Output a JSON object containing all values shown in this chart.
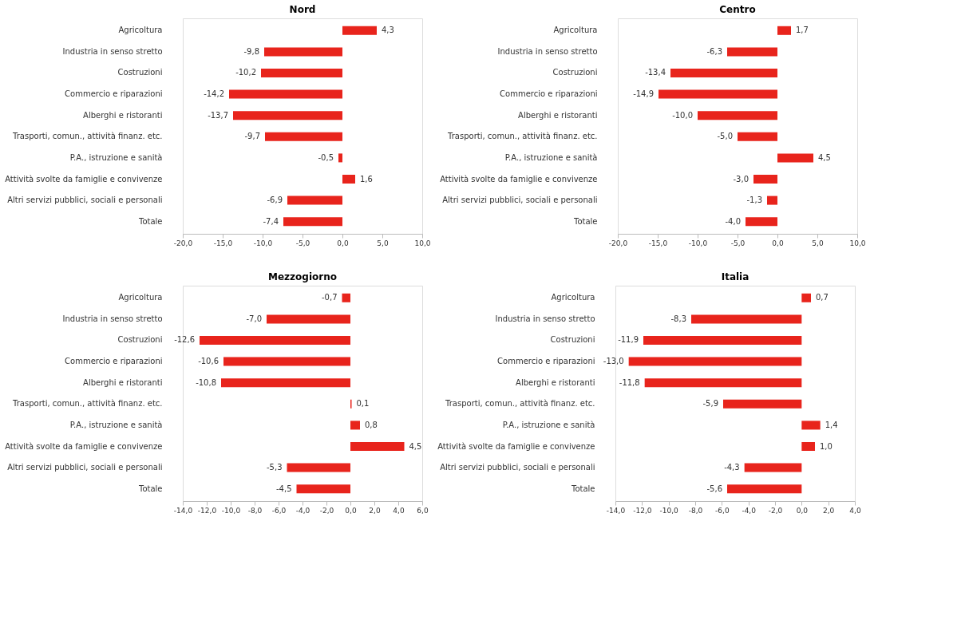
{
  "chart_data": [
    {
      "type": "bar",
      "orientation": "horizontal",
      "title": "Nord",
      "categories": [
        "Agricoltura",
        "Industria in senso stretto",
        "Costruzioni",
        "Commercio e riparazioni",
        "Alberghi e ristoranti",
        "Trasporti, comun., attività finanz. etc.",
        "P.A., istruzione e sanità",
        "Attività svolte da famiglie e convivenze",
        "Altri servizi pubblici, sociali e personali",
        "Totale"
      ],
      "values": [
        4.3,
        -9.8,
        -10.2,
        -14.2,
        -13.7,
        -9.7,
        -0.5,
        1.6,
        -6.9,
        -7.4
      ],
      "value_labels": [
        "4,3",
        "-9,8",
        "-10,2",
        "-14,2",
        "-13,7",
        "-9,7",
        "-0,5",
        "1,6",
        "-6,9",
        "-7,4"
      ],
      "color": "#e8241c",
      "xlim": [
        -20,
        10
      ],
      "xticks": [
        {
          "value": -20,
          "label": "-20,0"
        },
        {
          "value": -15,
          "label": "-15,0"
        },
        {
          "value": -10,
          "label": "-10,0"
        },
        {
          "value": -5,
          "label": "-5,0"
        },
        {
          "value": 0,
          "label": "0,0"
        },
        {
          "value": 5,
          "label": "5,0"
        },
        {
          "value": 10,
          "label": "10,0"
        }
      ]
    },
    {
      "type": "bar",
      "orientation": "horizontal",
      "title": "Centro",
      "categories": [
        "Agricoltura",
        "Industria in senso stretto",
        "Costruzioni",
        "Commercio e riparazioni",
        "Alberghi e ristoranti",
        "Trasporti, comun., attività finanz. etc.",
        "P.A., istruzione e sanità",
        "Attività svolte da famiglie e convivenze",
        "Altri servizi pubblici, sociali e personali",
        "Totale"
      ],
      "values": [
        1.7,
        -6.3,
        -13.4,
        -14.9,
        -10.0,
        -5.0,
        4.5,
        -3.0,
        -1.3,
        -4.0
      ],
      "value_labels": [
        "1,7",
        "-6,3",
        "-13,4",
        "-14,9",
        "-10,0",
        "-5,0",
        "4,5",
        "-3,0",
        "-1,3",
        "-4,0"
      ],
      "color": "#e8241c",
      "xlim": [
        -20,
        10
      ],
      "xticks": [
        {
          "value": -20,
          "label": "-20,0"
        },
        {
          "value": -15,
          "label": "-15,0"
        },
        {
          "value": -10,
          "label": "-10,0"
        },
        {
          "value": -5,
          "label": "-5,0"
        },
        {
          "value": 0,
          "label": "0,0"
        },
        {
          "value": 5,
          "label": "5,0"
        },
        {
          "value": 10,
          "label": "10,0"
        }
      ]
    },
    {
      "type": "bar",
      "orientation": "horizontal",
      "title": "Mezzogiorno",
      "categories": [
        "Agricoltura",
        "Industria in senso stretto",
        "Costruzioni",
        "Commercio e riparazioni",
        "Alberghi e ristoranti",
        "Trasporti, comun., attività finanz. etc.",
        "P.A., istruzione e sanità",
        "Attività svolte da famiglie e convivenze",
        "Altri servizi pubblici, sociali e personali",
        "Totale"
      ],
      "values": [
        -0.7,
        -7.0,
        -12.6,
        -10.6,
        -10.8,
        0.1,
        0.8,
        4.5,
        -5.3,
        -4.5
      ],
      "value_labels": [
        "-0,7",
        "-7,0",
        "-12,6",
        "-10,6",
        "-10,8",
        "0,1",
        "0,8",
        "4,5",
        "-5,3",
        "-4,5"
      ],
      "color": "#e8241c",
      "xlim": [
        -14,
        6
      ],
      "xticks": [
        {
          "value": -14,
          "label": "-14,0"
        },
        {
          "value": -12,
          "label": "-12,0"
        },
        {
          "value": -10,
          "label": "-10,0"
        },
        {
          "value": -8,
          "label": "-8,0"
        },
        {
          "value": -6,
          "label": "-6,0"
        },
        {
          "value": -4,
          "label": "-4,0"
        },
        {
          "value": -2,
          "label": "-2,0"
        },
        {
          "value": 0,
          "label": "0,0"
        },
        {
          "value": 2,
          "label": "2,0"
        },
        {
          "value": 4,
          "label": "4,0"
        },
        {
          "value": 6,
          "label": "6,0"
        }
      ]
    },
    {
      "type": "bar",
      "orientation": "horizontal",
      "title": "Italia",
      "categories": [
        "Agricoltura",
        "Industria in senso stretto",
        "Costruzioni",
        "Commercio e riparazioni",
        "Alberghi e ristoranti",
        "Trasporti, comun., attività finanz. etc.",
        "P.A., istruzione e sanità",
        "Attività svolte da famiglie e convivenze",
        "Altri servizi pubblici, sociali e personali",
        "Totale"
      ],
      "values": [
        0.7,
        -8.3,
        -11.9,
        -13.0,
        -11.8,
        -5.9,
        1.4,
        1.0,
        -4.3,
        -5.6
      ],
      "value_labels": [
        "0,7",
        "-8,3",
        "-11,9",
        "-13,0",
        "-11,8",
        "-5,9",
        "1,4",
        "1,0",
        "-4,3",
        "-5,6"
      ],
      "color": "#e8241c",
      "xlim": [
        -14,
        4
      ],
      "xticks": [
        {
          "value": -14,
          "label": "-14,0"
        },
        {
          "value": -12,
          "label": "-12,0"
        },
        {
          "value": -10,
          "label": "-10,0"
        },
        {
          "value": -8,
          "label": "-8,0"
        },
        {
          "value": -6,
          "label": "-6,0"
        },
        {
          "value": -4,
          "label": "-4,0"
        },
        {
          "value": -2,
          "label": "-2,0"
        },
        {
          "value": 0,
          "label": "0,0"
        },
        {
          "value": 2,
          "label": "2,0"
        },
        {
          "value": 4,
          "label": "4,0"
        }
      ]
    }
  ]
}
